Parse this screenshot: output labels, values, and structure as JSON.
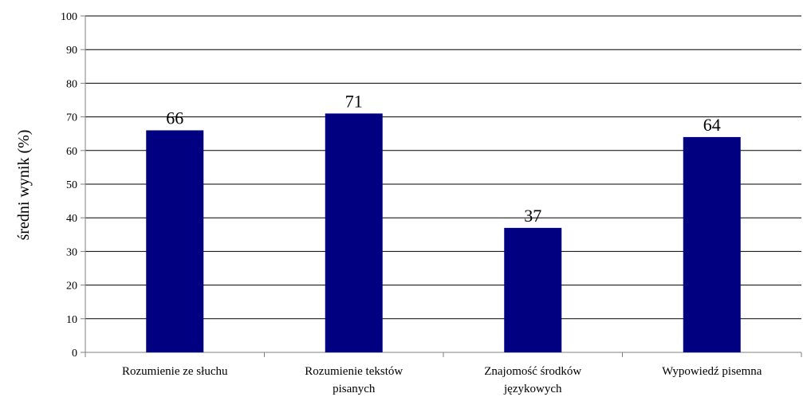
{
  "chart_data": {
    "type": "bar",
    "title": "",
    "xlabel": "",
    "ylabel": "średni wynik (%)",
    "categories": [
      [
        "Rozumienie ze słuchu"
      ],
      [
        "Rozumienie tekstów",
        "pisanych"
      ],
      [
        "Znajomość środków",
        "językowych"
      ],
      [
        "Wypowiedź pisemna"
      ]
    ],
    "values": [
      66,
      71,
      37,
      64
    ],
    "data_labels": [
      "66",
      "71",
      "37",
      "64"
    ],
    "ylim": [
      0,
      100
    ],
    "yticks": [
      0,
      10,
      20,
      30,
      40,
      50,
      60,
      70,
      80,
      90,
      100
    ],
    "grid": true,
    "legend": "none",
    "colors": {
      "bar": "#000080",
      "grid": "#000000",
      "border": "#808080",
      "text": "#000000"
    }
  }
}
